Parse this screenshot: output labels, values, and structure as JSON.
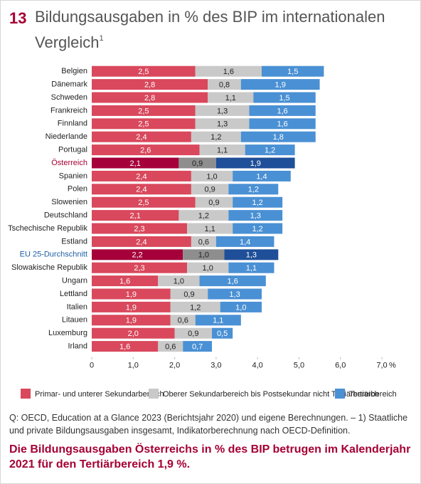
{
  "figure_number": "13",
  "chart_data": {
    "type": "stacked-bar-horizontal",
    "title": "Bildungsausgaben in % des BIP im internationalen Vergleich",
    "title_note": "1",
    "categories": [
      "Belgien",
      "Dänemark",
      "Schweden",
      "Frankreich",
      "Finnland",
      "Niederlande",
      "Portugal",
      "Österreich",
      "Spanien",
      "Polen",
      "Slowenien",
      "Deutschland",
      "Tschechische Republik",
      "Estland",
      "EU 25-Durchschnitt",
      "Slowakische Republik",
      "Ungarn",
      "Lettland",
      "Italien",
      "Litauen",
      "Luxemburg",
      "Irland"
    ],
    "highlight": [
      {
        "index": 7,
        "label_color": "#a50034"
      },
      {
        "index": 14,
        "label_color": "#1f5fa8"
      }
    ],
    "series": [
      {
        "name": "Primar- und unterer Sekundarbereich",
        "color": "#d9485c",
        "highlight_color": "#a5003a",
        "label_color": "#fff",
        "values": [
          2.5,
          2.8,
          2.8,
          2.5,
          2.5,
          2.4,
          2.6,
          2.1,
          2.4,
          2.4,
          2.5,
          2.1,
          2.3,
          2.4,
          2.2,
          2.3,
          1.6,
          1.9,
          1.9,
          1.9,
          2.0,
          1.6
        ],
        "value_labels": [
          "2,5",
          "2,8",
          "2,8",
          "2,5",
          "2,5",
          "2,4",
          "2,6",
          "2,1",
          "2,4",
          "2,4",
          "2,5",
          "2,1",
          "2,3",
          "2,4",
          "2,2",
          "2,3",
          "1,6",
          "1,9",
          "1,9",
          "1,9",
          "2,0",
          "1,6"
        ]
      },
      {
        "name": "Oberer Sekundarbereich bis Postsekundar nicht Tertiärbereich",
        "color": "#c9c9c9",
        "highlight_color": "#8e8e8e",
        "label_color": "#222",
        "values": [
          1.6,
          0.8,
          1.1,
          1.3,
          1.3,
          1.2,
          1.1,
          0.9,
          1.0,
          0.9,
          0.9,
          1.2,
          1.1,
          0.6,
          1.0,
          1.0,
          1.0,
          0.9,
          1.2,
          0.6,
          0.9,
          0.6
        ],
        "value_labels": [
          "1,6",
          "0,8",
          "1,1",
          "1,3",
          "1,3",
          "1,2",
          "1,1",
          "0,9",
          "1,0",
          "0,9",
          "0,9",
          "1,2",
          "1,1",
          "0,6",
          "1,0",
          "1,0",
          "1,0",
          "0,9",
          "1,2",
          "0,6",
          "0,9",
          "0,6"
        ]
      },
      {
        "name": "Tertiärbereich",
        "color": "#4a90d4",
        "highlight_color": "#1f4f98",
        "label_color": "#fff",
        "values": [
          1.5,
          1.9,
          1.5,
          1.6,
          1.6,
          1.8,
          1.2,
          1.9,
          1.4,
          1.2,
          1.2,
          1.3,
          1.2,
          1.4,
          1.3,
          1.1,
          1.6,
          1.3,
          1.0,
          1.1,
          0.5,
          0.7
        ],
        "value_labels": [
          "1,5",
          "1,9",
          "1,5",
          "1,6",
          "1,6",
          "1,8",
          "1,2",
          "1,9",
          "1,4",
          "1,2",
          "1,2",
          "1,3",
          "1,2",
          "1,4",
          "1,3",
          "1,1",
          "1,6",
          "1,3",
          "1,0",
          "1,1",
          "0,5",
          "0,7"
        ]
      }
    ],
    "xlim": [
      0,
      7
    ],
    "xticks": [
      0,
      {
        "value": 1,
        "label": "1,0"
      },
      {
        "value": 2,
        "label": "2,0"
      },
      {
        "value": 3,
        "label": "3,0"
      },
      {
        "value": 4,
        "label": "4,0"
      },
      {
        "value": 5,
        "label": "5,0"
      },
      {
        "value": 6,
        "label": "6,0"
      },
      {
        "value": 7,
        "label": "7,0"
      }
    ],
    "x_unit": "%",
    "grid": false
  },
  "source": "Q: OECD, Education at a Glance 2023 (Berichtsjahr 2020) und eigene Berechnungen. – 1) Staatliche und private Bildungsausgaben insgesamt, Indikatorberechnung nach OECD-Definition.",
  "conclusion": "Die Bildungsausgaben Österreichs in % des BIP betrugen im Kalenderjahr 2021 für den Tertiärbereich 1,9 %."
}
